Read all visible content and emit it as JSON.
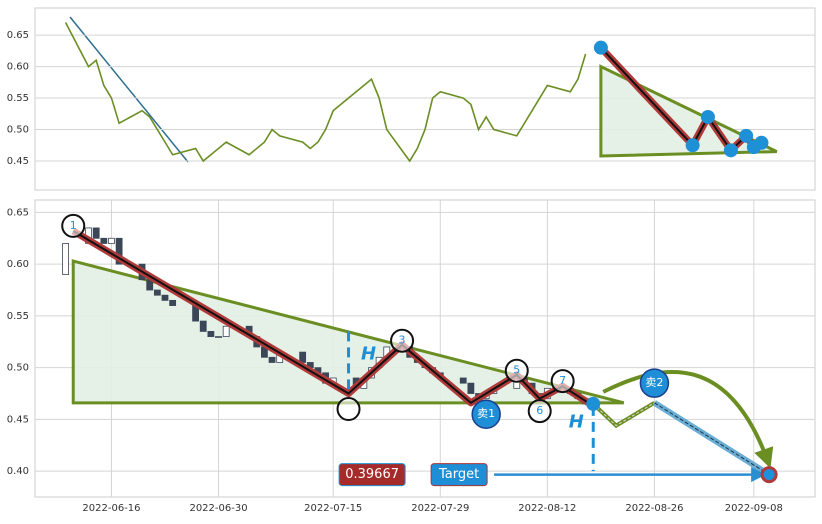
{
  "chart_data": [
    {
      "type": "line",
      "x": [
        "2022-06-10",
        "2022-06-13",
        "2022-06-14",
        "2022-06-15",
        "2022-06-16",
        "2022-06-17",
        "2022-06-20",
        "2022-06-21",
        "2022-06-22",
        "2022-06-23",
        "2022-06-24",
        "2022-06-27",
        "2022-06-28",
        "2022-06-29",
        "2022-06-30",
        "2022-07-01",
        "2022-07-04",
        "2022-07-05",
        "2022-07-06",
        "2022-07-07",
        "2022-07-08",
        "2022-07-11",
        "2022-07-12",
        "2022-07-13",
        "2022-07-14",
        "2022-07-15",
        "2022-07-18",
        "2022-07-19",
        "2022-07-20",
        "2022-07-21",
        "2022-07-22",
        "2022-07-25",
        "2022-07-26",
        "2022-07-27",
        "2022-07-28",
        "2022-07-29",
        "2022-08-01",
        "2022-08-02",
        "2022-08-03",
        "2022-08-04",
        "2022-08-05",
        "2022-08-08",
        "2022-08-09",
        "2022-08-10",
        "2022-08-11",
        "2022-08-12",
        "2022-08-15",
        "2022-08-16",
        "2022-08-17"
      ],
      "values": [
        0.67,
        0.6,
        0.61,
        0.57,
        0.55,
        0.51,
        0.53,
        0.52,
        0.5,
        0.48,
        0.46,
        0.47,
        0.45,
        0.46,
        0.47,
        0.48,
        0.46,
        0.47,
        0.48,
        0.5,
        0.49,
        0.48,
        0.47,
        0.48,
        0.5,
        0.53,
        0.56,
        0.57,
        0.58,
        0.55,
        0.5,
        0.45,
        0.47,
        0.5,
        0.55,
        0.56,
        0.55,
        0.54,
        0.5,
        0.52,
        0.5,
        0.49,
        0.51,
        0.53,
        0.55,
        0.57,
        0.56,
        0.58,
        0.62
      ],
      "color": "#6b8e23",
      "xlim": [
        "2022-06-06",
        "2022-09-16"
      ],
      "ylim": [
        0.404,
        0.693
      ],
      "yticks": [
        0.45,
        {
          "value": 0.5,
          "label": "0.50"
        },
        0.55,
        {
          "value": 0.6,
          "label": "0.60"
        },
        0.65
      ],
      "grid": true,
      "zigzag": {
        "color": "#b03a3a",
        "x": [
          "2022-08-19",
          "2022-08-31",
          "2022-09-02",
          "2022-09-05",
          "2022-09-07",
          "2022-09-08",
          "2022-09-09"
        ],
        "values": [
          0.63,
          0.475,
          0.52,
          0.467,
          0.49,
          0.472,
          0.479
        ]
      },
      "triangle": {
        "color": "#6b8e23",
        "x": [
          "2022-08-19",
          "2022-09-11",
          "2022-08-19"
        ],
        "values": [
          0.6,
          0.465,
          0.458
        ]
      }
    },
    {
      "type": "candlestick",
      "x": [
        "2022-06-10",
        "2022-06-13",
        "2022-06-14",
        "2022-06-15",
        "2022-06-16",
        "2022-06-17",
        "2022-06-20",
        "2022-06-21",
        "2022-06-22",
        "2022-06-23",
        "2022-06-24",
        "2022-06-27",
        "2022-06-28",
        "2022-06-29",
        "2022-06-30",
        "2022-07-01",
        "2022-07-04",
        "2022-07-05",
        "2022-07-06",
        "2022-07-07",
        "2022-07-08",
        "2022-07-11",
        "2022-07-12",
        "2022-07-13",
        "2022-07-14",
        "2022-07-15",
        "2022-07-18",
        "2022-07-19",
        "2022-07-20",
        "2022-07-21",
        "2022-07-22",
        "2022-07-25",
        "2022-07-26",
        "2022-07-27",
        "2022-07-28",
        "2022-07-29",
        "2022-08-01",
        "2022-08-02",
        "2022-08-03",
        "2022-08-04",
        "2022-08-05",
        "2022-08-08",
        "2022-08-09",
        "2022-08-10",
        "2022-08-11",
        "2022-08-12",
        "2022-08-15",
        "2022-08-16",
        "2022-08-17"
      ],
      "open": [
        0.59,
        0.62,
        0.635,
        0.625,
        0.62,
        0.625,
        0.6,
        0.585,
        0.575,
        0.57,
        0.565,
        0.56,
        0.545,
        0.535,
        0.53,
        0.53,
        0.54,
        0.53,
        0.52,
        0.51,
        0.505,
        0.515,
        0.505,
        0.5,
        0.495,
        0.485,
        0.49,
        0.48,
        0.49,
        0.5,
        0.51,
        0.52,
        0.51,
        0.505,
        0.5,
        0.495,
        0.49,
        0.485,
        0.475,
        0.47,
        0.475,
        0.48,
        0.49,
        0.485,
        0.475,
        0.47,
        0.48,
        0.475,
        0.47
      ],
      "close": [
        0.62,
        0.635,
        0.625,
        0.62,
        0.625,
        0.6,
        0.585,
        0.575,
        0.57,
        0.565,
        0.56,
        0.545,
        0.535,
        0.53,
        0.53,
        0.54,
        0.53,
        0.52,
        0.51,
        0.505,
        0.515,
        0.505,
        0.5,
        0.495,
        0.485,
        0.49,
        0.48,
        0.49,
        0.5,
        0.51,
        0.52,
        0.51,
        0.505,
        0.5,
        0.495,
        0.49,
        0.485,
        0.475,
        0.47,
        0.475,
        0.48,
        0.49,
        0.485,
        0.475,
        0.47,
        0.48,
        0.475,
        0.47,
        0.465
      ],
      "up_color": "#ffffff",
      "down_color": "#3b4657",
      "xlim": [
        "2022-06-06",
        "2022-09-16"
      ],
      "xticks": [
        "2022-06-16",
        "2022-06-30",
        "2022-07-15",
        "2022-07-29",
        "2022-08-12",
        "2022-08-26",
        "2022-09-08"
      ],
      "ylim": [
        0.375,
        0.662
      ],
      "yticks": [
        {
          "value": 0.4,
          "label": "0.40"
        },
        0.45,
        {
          "value": 0.5,
          "label": "0.50"
        },
        0.55,
        {
          "value": 0.6,
          "label": "0.60"
        },
        0.65
      ],
      "grid": true,
      "triangle": {
        "color": "#6b8e23",
        "x": [
          "2022-06-11",
          "2022-08-22",
          "2022-06-11"
        ],
        "values": [
          0.603,
          0.466,
          0.466
        ]
      },
      "zigzag": {
        "color": "#b03a3a",
        "x": [
          "2022-06-11",
          "2022-07-17",
          "2022-07-24",
          "2022-08-02",
          "2022-08-08",
          "2022-08-11",
          "2022-08-14",
          "2022-08-18"
        ],
        "values": [
          0.632,
          0.475,
          0.522,
          0.466,
          0.493,
          0.47,
          0.482,
          0.463
        ]
      },
      "points": {
        "x": [
          "2022-06-11",
          "2022-07-17",
          "2022-07-24",
          "2022-08-08",
          "2022-08-11",
          "2022-08-14"
        ],
        "values": [
          0.637,
          0.46,
          0.526,
          0.497,
          0.458,
          0.487
        ],
        "labels": [
          "1",
          null,
          "3",
          "5",
          "6",
          "7"
        ]
      },
      "sells": [
        {
          "label": "卖1",
          "x": "2022-08-04",
          "value": 0.455
        },
        {
          "label": "卖2",
          "x": "2022-08-26",
          "value": 0.485
        }
      ],
      "prediction": {
        "color": "#6b8e23",
        "x": [
          "2022-08-18",
          "2022-08-21",
          "2022-08-26"
        ],
        "values": [
          0.465,
          0.444,
          0.466
        ]
      },
      "target": {
        "label": "Target",
        "value": 0.39667,
        "x": "2022-09-10"
      },
      "h_marks": [
        {
          "label": "H",
          "x": "2022-07-17",
          "from": 0.535,
          "to": 0.475
        },
        {
          "label": "H",
          "x": "2022-08-18",
          "from": 0.463,
          "to": 0.4
        }
      ]
    }
  ]
}
